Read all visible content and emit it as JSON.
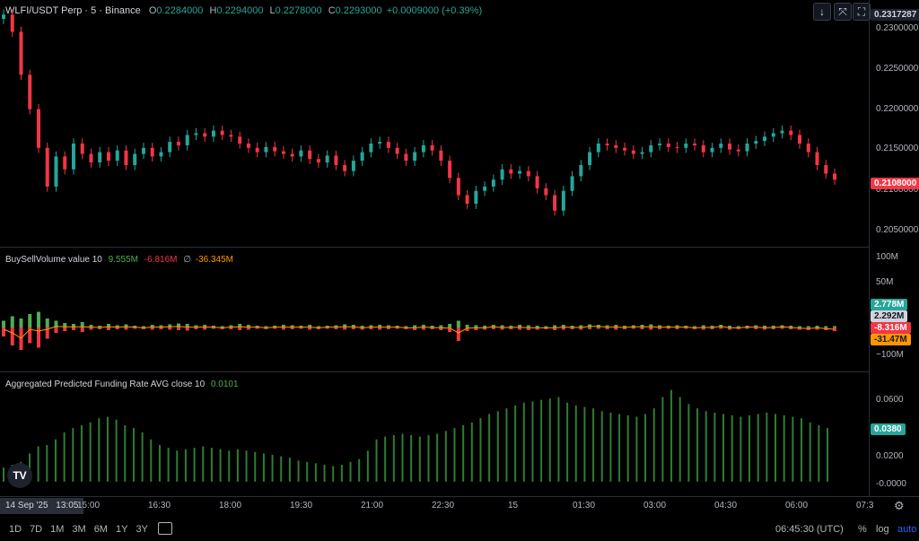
{
  "header": {
    "symbol": "WLFI/USDT Perp · 5 · Binance",
    "o_label": "O",
    "o_value": "0.2284000",
    "h_label": "H",
    "h_value": "0.2294000",
    "l_label": "L",
    "l_value": "0.2278000",
    "c_label": "C",
    "c_value": "0.2293000",
    "change": "+0.0009000 (+0.39%)"
  },
  "top_buttons": {
    "down": "↓",
    "collapse": "⤧",
    "maximize": "⛶"
  },
  "price_axis": {
    "top_tag": "0.2317287",
    "labels": [
      "0.2300000",
      "0.2250000",
      "0.2200000",
      "0.2150000",
      "0.2100000",
      "0.2050000"
    ],
    "last_price_tag": "0.2108000"
  },
  "volume_pane": {
    "title": "BuySellVolume value 10",
    "buy": "9.555M",
    "sell": "-6.816M",
    "avg_symbol": "∅",
    "avg": "-36.345M",
    "axis_labels": [
      "100M",
      "50M",
      "−100M"
    ],
    "tags": [
      {
        "text": "2.778M",
        "color": "#26a69a"
      },
      {
        "text": "2.292M",
        "color": "#d1d4dc"
      },
      {
        "text": "-8.316M",
        "color": "#f23645"
      },
      {
        "text": "-31.47M",
        "color": "#ff9800"
      }
    ]
  },
  "funding_pane": {
    "title": "Aggregated Predicted Funding Rate AVG close 10",
    "value": "0.0101",
    "axis_labels": [
      "0.0600",
      "0.0200",
      "-0.0000"
    ],
    "tag": "0.0380"
  },
  "time_axis": {
    "cursor_date": "14 Sep '25",
    "cursor_time": "13:05",
    "labels": [
      "15:00",
      "16:30",
      "18:00",
      "19:30",
      "21:00",
      "22:30",
      "15",
      "01:30",
      "03:00",
      "04:30",
      "06:00",
      "07:3"
    ]
  },
  "bottom_bar": {
    "ranges": [
      "1D",
      "7D",
      "1M",
      "3M",
      "6M",
      "1Y",
      "3Y"
    ],
    "clock": "06:45:30 (UTC)",
    "percent": "%",
    "log": "log",
    "auto": "auto"
  },
  "logo_text": "TV",
  "colors": {
    "up": "#26a69a",
    "down": "#f23645",
    "buy": "#4caf50",
    "sell": "#f23645",
    "avg": "#ff9800",
    "funding": "#2e7d32",
    "accent": "#2962ff"
  },
  "chart_data": [
    {
      "type": "candlestick",
      "title": "WLFI/USDT Perp · 5 · Binance",
      "ylim": [
        0.203,
        0.2317
      ],
      "close": [
        0.23,
        0.228,
        0.223,
        0.219,
        0.2145,
        0.21,
        0.2135,
        0.212,
        0.215,
        0.2138,
        0.2128,
        0.214,
        0.213,
        0.2142,
        0.2125,
        0.2138,
        0.2145,
        0.2135,
        0.214,
        0.2152,
        0.2148,
        0.216,
        0.2162,
        0.2158,
        0.2165,
        0.216,
        0.2158,
        0.215,
        0.2145,
        0.214,
        0.2146,
        0.2141,
        0.2138,
        0.2135,
        0.2142,
        0.2132,
        0.2128,
        0.2136,
        0.2125,
        0.2118,
        0.213,
        0.214,
        0.215,
        0.2152,
        0.2145,
        0.2138,
        0.213,
        0.214,
        0.2148,
        0.2142,
        0.213,
        0.211,
        0.209,
        0.208,
        0.2095,
        0.21,
        0.2108,
        0.212,
        0.2115,
        0.2118,
        0.2112,
        0.2098,
        0.209,
        0.2072,
        0.2095,
        0.2112,
        0.2125,
        0.214,
        0.215,
        0.2148,
        0.2145,
        0.2142,
        0.2138,
        0.214,
        0.2148,
        0.215,
        0.2146,
        0.2145,
        0.215,
        0.2148,
        0.214,
        0.2145,
        0.215,
        0.2143,
        0.2141,
        0.215,
        0.2153,
        0.2158,
        0.2162,
        0.2165,
        0.216,
        0.215,
        0.214,
        0.2125,
        0.2115,
        0.2108
      ]
    },
    {
      "type": "bar",
      "title": "BuySellVolume value 10",
      "ylim": [
        -100,
        100
      ],
      "buy": [
        15,
        25,
        20,
        30,
        35,
        20,
        15,
        10,
        8,
        12,
        6,
        4,
        8,
        5,
        7,
        4,
        3,
        6,
        5,
        7,
        9,
        8,
        5,
        6,
        4,
        3,
        5,
        8,
        6,
        4,
        3,
        4,
        6,
        5,
        4,
        6,
        3,
        4,
        5,
        7,
        6,
        4,
        5,
        6,
        5,
        4,
        3,
        5,
        6,
        4,
        5,
        8,
        15,
        6,
        5,
        4,
        6,
        5,
        4,
        6,
        5,
        4,
        3,
        5,
        6,
        4,
        5,
        7,
        6,
        5,
        6,
        4,
        5,
        6,
        7,
        5,
        4,
        5,
        4,
        3,
        5,
        4,
        6,
        4,
        3,
        4,
        5,
        4,
        4,
        5,
        4,
        3,
        3,
        4,
        3,
        3
      ],
      "sell": [
        -20,
        -40,
        -50,
        -35,
        -45,
        -25,
        -12,
        -8,
        -6,
        -10,
        -5,
        -4,
        -6,
        -4,
        -5,
        -3,
        -4,
        -5,
        -4,
        -5,
        -6,
        -7,
        -4,
        -5,
        -3,
        -4,
        -4,
        -6,
        -5,
        -3,
        -4,
        -3,
        -5,
        -4,
        -3,
        -5,
        -4,
        -3,
        -4,
        -5,
        -4,
        -5,
        -4,
        -5,
        -4,
        -3,
        -4,
        -6,
        -5,
        -4,
        -6,
        -10,
        -30,
        -8,
        -6,
        -5,
        -4,
        -5,
        -4,
        -5,
        -6,
        -5,
        -4,
        -6,
        -5,
        -4,
        -5,
        -4,
        -3,
        -4,
        -5,
        -4,
        -3,
        -4,
        -5,
        -4,
        -3,
        -4,
        -3,
        -4,
        -5,
        -4,
        -3,
        -5,
        -4,
        -3,
        -4,
        -5,
        -4,
        -3,
        -4,
        -5,
        -6,
        -5,
        -6,
        -8
      ]
    },
    {
      "type": "bar",
      "title": "Aggregated Predicted Funding Rate AVG close 10",
      "ylim": [
        -0.002,
        0.068
      ],
      "values": [
        0.01,
        0.012,
        0.014,
        0.02,
        0.025,
        0.026,
        0.03,
        0.035,
        0.038,
        0.04,
        0.042,
        0.045,
        0.046,
        0.044,
        0.04,
        0.038,
        0.035,
        0.03,
        0.026,
        0.024,
        0.022,
        0.023,
        0.024,
        0.025,
        0.024,
        0.023,
        0.022,
        0.023,
        0.022,
        0.021,
        0.02,
        0.019,
        0.018,
        0.017,
        0.015,
        0.014,
        0.013,
        0.012,
        0.011,
        0.012,
        0.014,
        0.016,
        0.022,
        0.03,
        0.032,
        0.033,
        0.034,
        0.033,
        0.032,
        0.033,
        0.034,
        0.036,
        0.038,
        0.04,
        0.042,
        0.045,
        0.048,
        0.05,
        0.052,
        0.054,
        0.056,
        0.057,
        0.058,
        0.059,
        0.06,
        0.056,
        0.054,
        0.053,
        0.052,
        0.05,
        0.049,
        0.048,
        0.047,
        0.046,
        0.048,
        0.052,
        0.06,
        0.065,
        0.06,
        0.055,
        0.052,
        0.05,
        0.049,
        0.048,
        0.047,
        0.046,
        0.047,
        0.048,
        0.049,
        0.048,
        0.047,
        0.046,
        0.045,
        0.042,
        0.04,
        0.038
      ]
    }
  ]
}
